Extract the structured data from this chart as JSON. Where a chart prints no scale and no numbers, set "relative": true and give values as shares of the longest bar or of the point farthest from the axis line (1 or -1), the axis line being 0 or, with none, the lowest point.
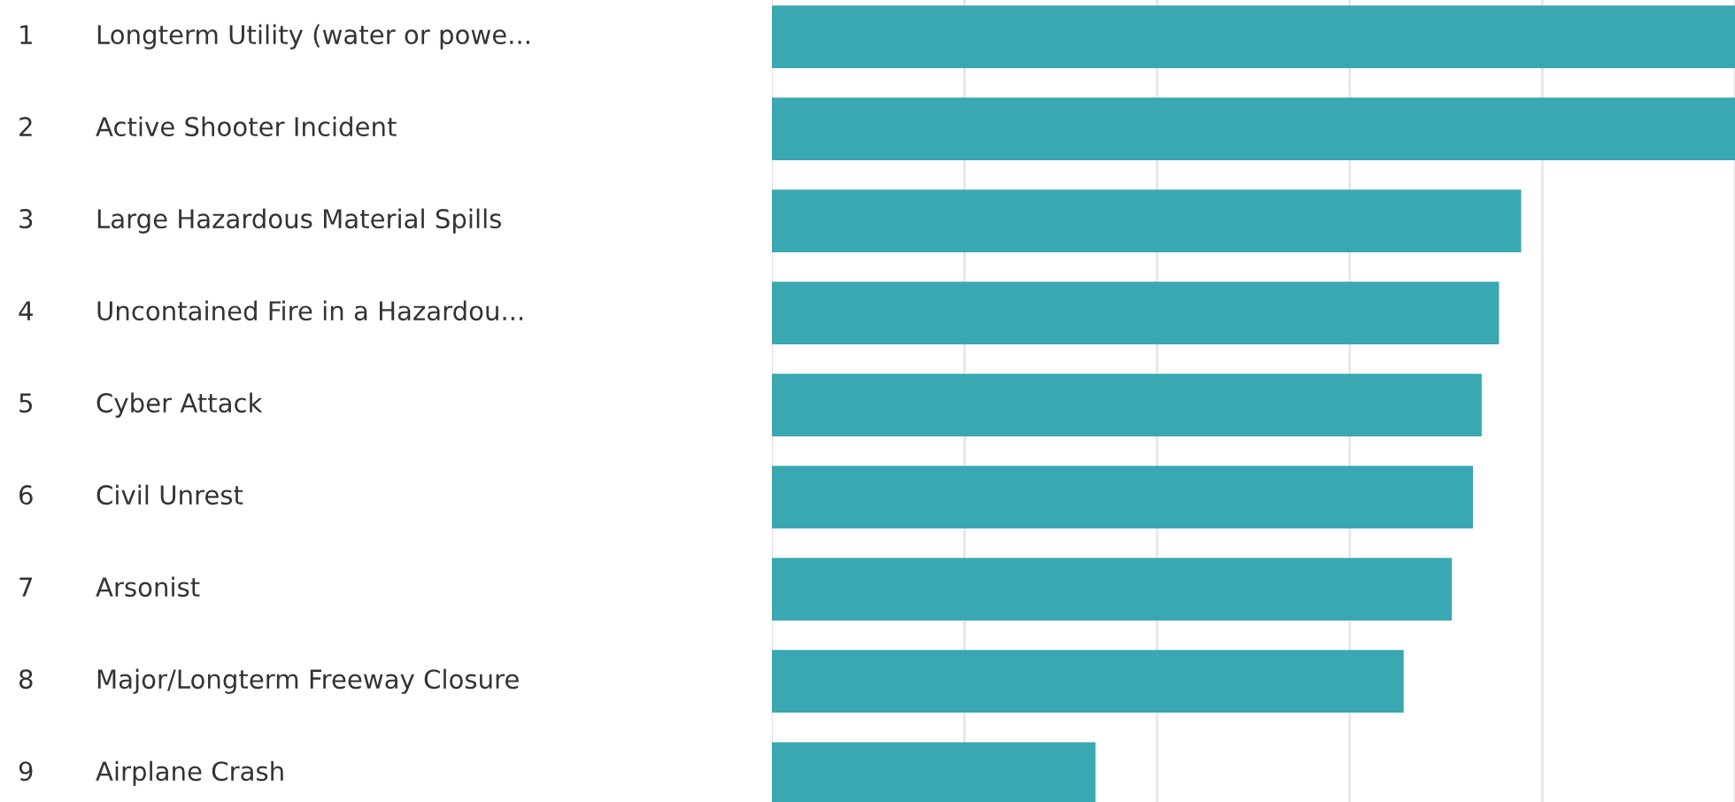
{
  "chart_data": {
    "type": "bar",
    "orientation": "horizontal",
    "relative": true,
    "categories": [
      "Longterm Utility (water or powe...",
      "Active Shooter Incident",
      "Large Hazardous Material Spills",
      "Uncontained Fire in a Hazardou...",
      "Cyber Attack",
      "Civil Unrest",
      "Arsonist",
      "Major/Longterm Freeway Closure",
      "Airplane Crash"
    ],
    "values": [
      1,
      1,
      0.778,
      0.755,
      0.737,
      0.728,
      0.706,
      0.656,
      0.336
    ],
    "color": "#3aa8b2",
    "annotations": [
      "1",
      "2",
      "3",
      "4",
      "5",
      "6",
      "7",
      "8",
      "9"
    ],
    "grid": "x",
    "legend": false
  }
}
